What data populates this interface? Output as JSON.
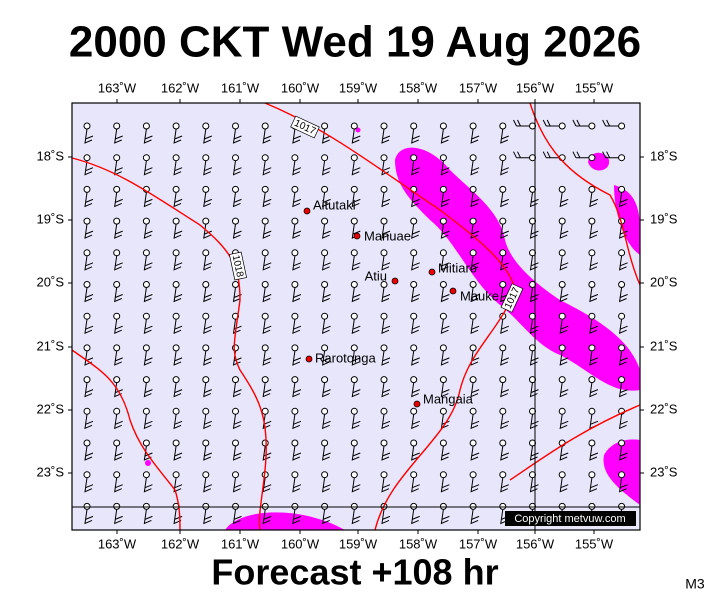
{
  "header": {
    "title": "2000 CKT Wed 19 Aug 2026"
  },
  "map": {
    "lon_labels": [
      "163˚W",
      "162˚W",
      "161˚W",
      "160˚W",
      "159˚W",
      "158˚W",
      "157˚W",
      "156˚W",
      "155˚W"
    ],
    "lat_labels": [
      "18˚S",
      "19˚S",
      "20˚S",
      "21˚S",
      "22˚S",
      "23˚S"
    ],
    "places": [
      "Aitutaki",
      "Manuae",
      "Atiu",
      "Mitiaro",
      "Mauke",
      "Rarotonga",
      "Mangaia"
    ],
    "isobar_labels": [
      "1017",
      "1018",
      "1017"
    ],
    "copyright": "Copyright metvuw.com"
  },
  "footer": {
    "forecast": "Forecast +108 hr",
    "code": "M3"
  }
}
